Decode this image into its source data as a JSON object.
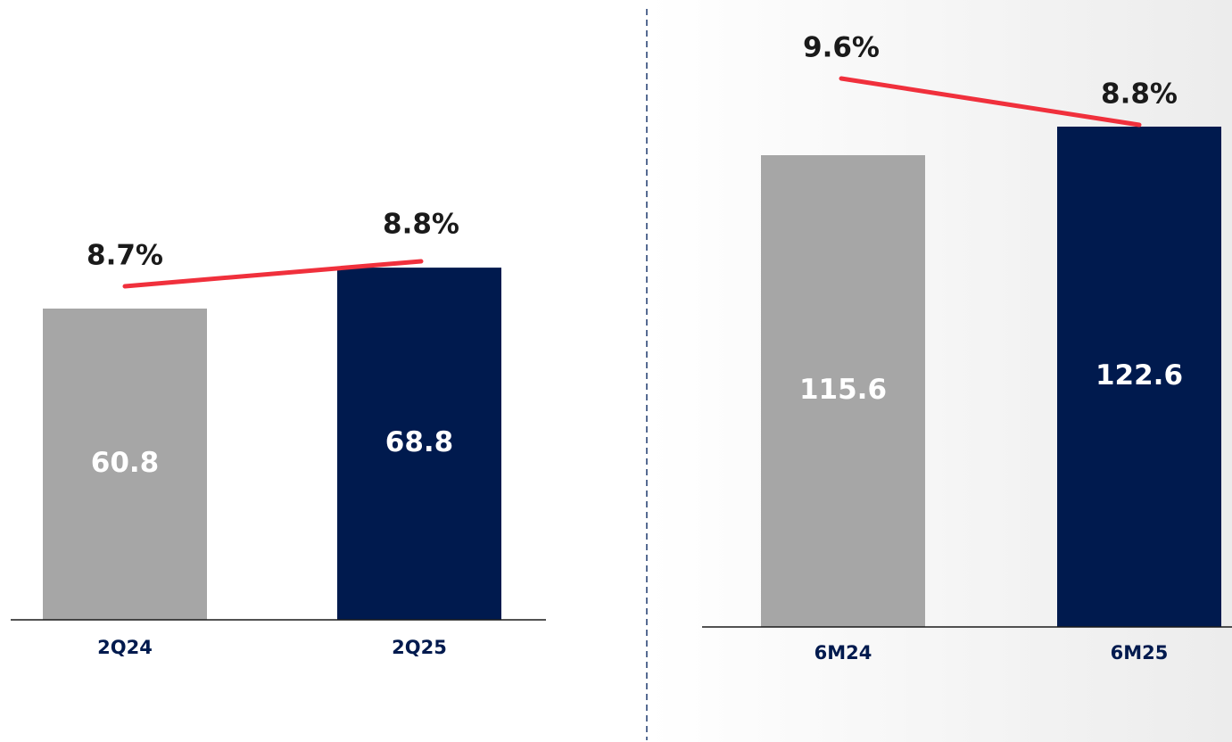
{
  "chart_data": [
    {
      "type": "bar",
      "categories": [
        "2Q24",
        "2Q25"
      ],
      "series": [
        {
          "type": "bar",
          "colors": [
            "#a6a6a6",
            "#001a4e"
          ],
          "values": [
            60.8,
            68.8
          ]
        },
        {
          "type": "line",
          "color": "#f0303c",
          "values": [
            8.7,
            8.8
          ],
          "value_labels": [
            "8.7%",
            "8.8%"
          ]
        }
      ]
    },
    {
      "type": "bar",
      "categories": [
        "6M24",
        "6M25"
      ],
      "series": [
        {
          "type": "bar",
          "colors": [
            "#a6a6a6",
            "#001a4e"
          ],
          "values": [
            115.6,
            122.6
          ]
        },
        {
          "type": "line",
          "color": "#f0303c",
          "values": [
            9.6,
            8.8
          ],
          "value_labels": [
            "9.6%",
            "8.8%"
          ]
        }
      ]
    }
  ]
}
